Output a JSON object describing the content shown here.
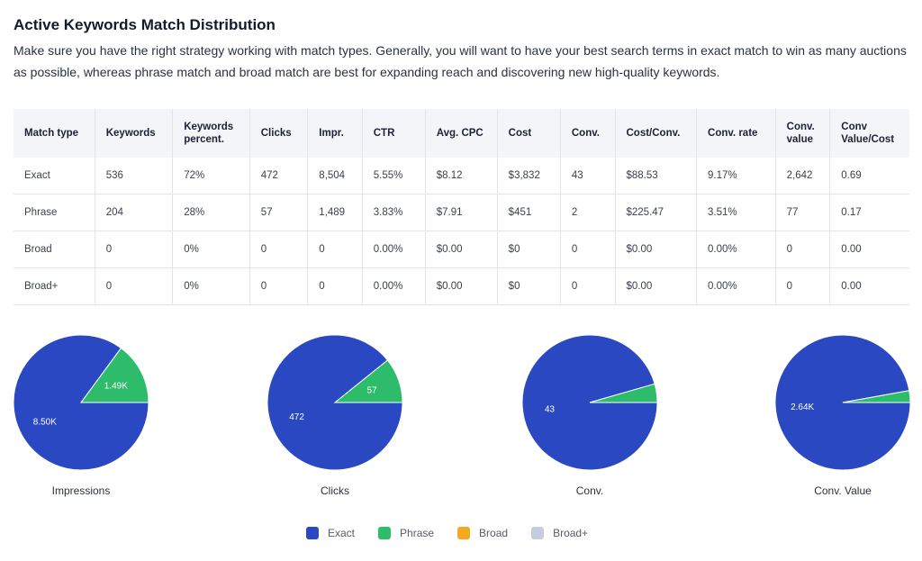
{
  "title": "Active Keywords Match Distribution",
  "description": "Make sure you have the right strategy working with match types. Generally, you will want to have your best search terms in exact match to win as many auctions as possible, whereas phrase match and broad match are best for expanding reach and discovering new high-quality keywords.",
  "table": {
    "headers": [
      "Match type",
      "Keywords",
      "Keywords percent.",
      "Clicks",
      "Impr.",
      "CTR",
      "Avg. CPC",
      "Cost",
      "Conv.",
      "Cost/Conv.",
      "Conv. rate",
      "Conv. value",
      "Conv Value/Cost"
    ],
    "rows": [
      [
        "Exact",
        "536",
        "72%",
        "472",
        "8,504",
        "5.55%",
        "$8.12",
        "$3,832",
        "43",
        "$88.53",
        "9.17%",
        "2,642",
        "0.69"
      ],
      [
        "Phrase",
        "204",
        "28%",
        "57",
        "1,489",
        "3.83%",
        "$7.91",
        "$451",
        "2",
        "$225.47",
        "3.51%",
        "77",
        "0.17"
      ],
      [
        "Broad",
        "0",
        "0%",
        "0",
        "0",
        "0.00%",
        "$0.00",
        "$0",
        "0",
        "$0.00",
        "0.00%",
        "0",
        "0.00"
      ],
      [
        "Broad+",
        "0",
        "0%",
        "0",
        "0",
        "0.00%",
        "$0.00",
        "$0",
        "0",
        "$0.00",
        "0.00%",
        "0",
        "0.00"
      ]
    ]
  },
  "colors": {
    "Exact": "#2a48c2",
    "Phrase": "#2dbd6a",
    "Broad": "#f7a823",
    "Broad+": "#c6ccdd"
  },
  "chart_data": [
    {
      "type": "pie",
      "title": "Impressions",
      "categories": [
        "Exact",
        "Phrase",
        "Broad",
        "Broad+"
      ],
      "values": [
        8504,
        1489,
        0,
        0
      ],
      "labels": [
        "8.50K",
        "1.49K",
        "",
        ""
      ]
    },
    {
      "type": "pie",
      "title": "Clicks",
      "categories": [
        "Exact",
        "Phrase",
        "Broad",
        "Broad+"
      ],
      "values": [
        472,
        57,
        0,
        0
      ],
      "labels": [
        "472",
        "57",
        "",
        ""
      ]
    },
    {
      "type": "pie",
      "title": "Conv.",
      "categories": [
        "Exact",
        "Phrase",
        "Broad",
        "Broad+"
      ],
      "values": [
        43,
        2,
        0,
        0
      ],
      "labels": [
        "43",
        "",
        "",
        ""
      ]
    },
    {
      "type": "pie",
      "title": "Conv. Value",
      "categories": [
        "Exact",
        "Phrase",
        "Broad",
        "Broad+"
      ],
      "values": [
        2642,
        77,
        0,
        0
      ],
      "labels": [
        "2.64K",
        "",
        "",
        ""
      ]
    }
  ],
  "legend": [
    "Exact",
    "Phrase",
    "Broad",
    "Broad+"
  ]
}
